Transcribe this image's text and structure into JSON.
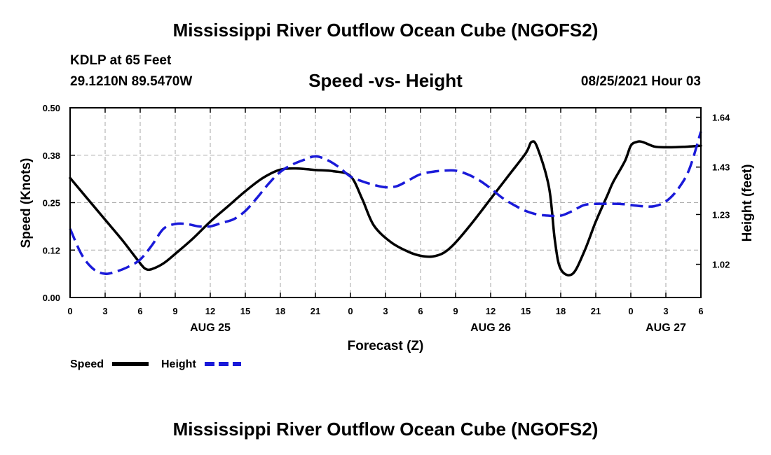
{
  "header": {
    "title": "Mississippi River Outflow Ocean Cube (NGOFS2)",
    "station": "KDLP at 65 Feet",
    "coords": "29.1210N  89.5470W",
    "subtitle": "Speed -vs- Height",
    "datetime": "08/25/2021 Hour 03"
  },
  "footer": {
    "title": "Mississippi River Outflow Ocean Cube (NGOFS2)"
  },
  "chart_data": {
    "type": "line",
    "xlabel": "Forecast (Z)",
    "ylabel": "Speed (Knots)",
    "y2label": "Height (feet)",
    "xlim": [
      0,
      54
    ],
    "ylim": [
      0,
      0.5
    ],
    "y2lim": [
      0.88,
      1.68
    ],
    "x_tick_values": [
      0,
      3,
      6,
      9,
      12,
      15,
      18,
      21,
      24,
      27,
      30,
      33,
      36,
      39,
      42,
      45,
      48,
      51,
      54
    ],
    "x_tick_labels": [
      "0",
      "3",
      "6",
      "9",
      "12",
      "15",
      "18",
      "21",
      "0",
      "3",
      "6",
      "9",
      "12",
      "15",
      "18",
      "21",
      "0",
      "3",
      "6"
    ],
    "y_tick_values": [
      0,
      0.125,
      0.25,
      0.375,
      0.5
    ],
    "y_tick_labels": [
      "0.00",
      "0.12",
      "0.25",
      "0.38",
      "0.50"
    ],
    "y2_tick_values": [
      1.02,
      1.23,
      1.43,
      1.64
    ],
    "y2_tick_labels": [
      "1.02",
      "1.23",
      "1.43",
      "1.64"
    ],
    "date_labels": [
      {
        "x": 12,
        "label": "AUG 25"
      },
      {
        "x": 36,
        "label": "AUG 26"
      },
      {
        "x": 51,
        "label": "AUG 27"
      }
    ],
    "grid": true,
    "legend": "bottom-left",
    "series": [
      {
        "name": "Speed",
        "axis": "left",
        "color": "#000000",
        "style": "solid",
        "x": [
          0,
          1.5,
          3,
          4.5,
          6,
          6.5,
          7,
          8,
          9,
          10.5,
          12,
          13.5,
          15,
          16.5,
          18,
          19.5,
          21,
          22.5,
          24,
          25,
          26,
          27.5,
          29,
          30,
          31,
          32,
          33,
          34.5,
          36,
          37.5,
          39,
          39.5,
          40,
          41,
          41.5,
          42,
          43,
          44,
          45,
          46,
          46.5,
          47.5,
          48,
          48.5,
          49,
          50,
          51,
          52.5,
          54
        ],
        "y": [
          0.315,
          0.26,
          0.205,
          0.15,
          0.09,
          0.075,
          0.075,
          0.09,
          0.115,
          0.155,
          0.2,
          0.24,
          0.28,
          0.315,
          0.337,
          0.34,
          0.336,
          0.333,
          0.32,
          0.26,
          0.19,
          0.145,
          0.12,
          0.11,
          0.108,
          0.118,
          0.145,
          0.2,
          0.26,
          0.32,
          0.38,
          0.41,
          0.395,
          0.29,
          0.15,
          0.075,
          0.062,
          0.12,
          0.2,
          0.27,
          0.305,
          0.36,
          0.4,
          0.41,
          0.41,
          0.398,
          0.396,
          0.397,
          0.4
        ]
      },
      {
        "name": "Height",
        "axis": "right",
        "color": "#1a1ad9",
        "style": "dashed",
        "x": [
          0,
          1,
          2,
          3,
          4,
          5,
          6,
          7,
          8,
          9,
          10,
          11,
          12,
          13,
          14,
          15,
          16,
          17,
          18,
          19,
          20,
          21,
          22,
          23,
          24,
          25,
          26,
          27,
          28,
          29,
          30,
          31,
          32,
          33,
          34,
          35,
          36,
          37,
          38,
          39,
          40,
          41,
          42,
          43,
          44,
          45,
          46,
          47,
          48,
          49,
          50,
          51,
          52,
          53,
          54
        ],
        "y": [
          1.17,
          1.06,
          1.0,
          0.98,
          0.99,
          1.01,
          1.04,
          1.1,
          1.17,
          1.19,
          1.19,
          1.18,
          1.18,
          1.195,
          1.21,
          1.245,
          1.3,
          1.36,
          1.41,
          1.44,
          1.46,
          1.475,
          1.46,
          1.43,
          1.39,
          1.37,
          1.355,
          1.345,
          1.35,
          1.375,
          1.4,
          1.41,
          1.415,
          1.415,
          1.4,
          1.375,
          1.34,
          1.3,
          1.27,
          1.245,
          1.23,
          1.225,
          1.225,
          1.245,
          1.27,
          1.275,
          1.275,
          1.275,
          1.27,
          1.265,
          1.265,
          1.285,
          1.335,
          1.42,
          1.58
        ]
      }
    ]
  }
}
